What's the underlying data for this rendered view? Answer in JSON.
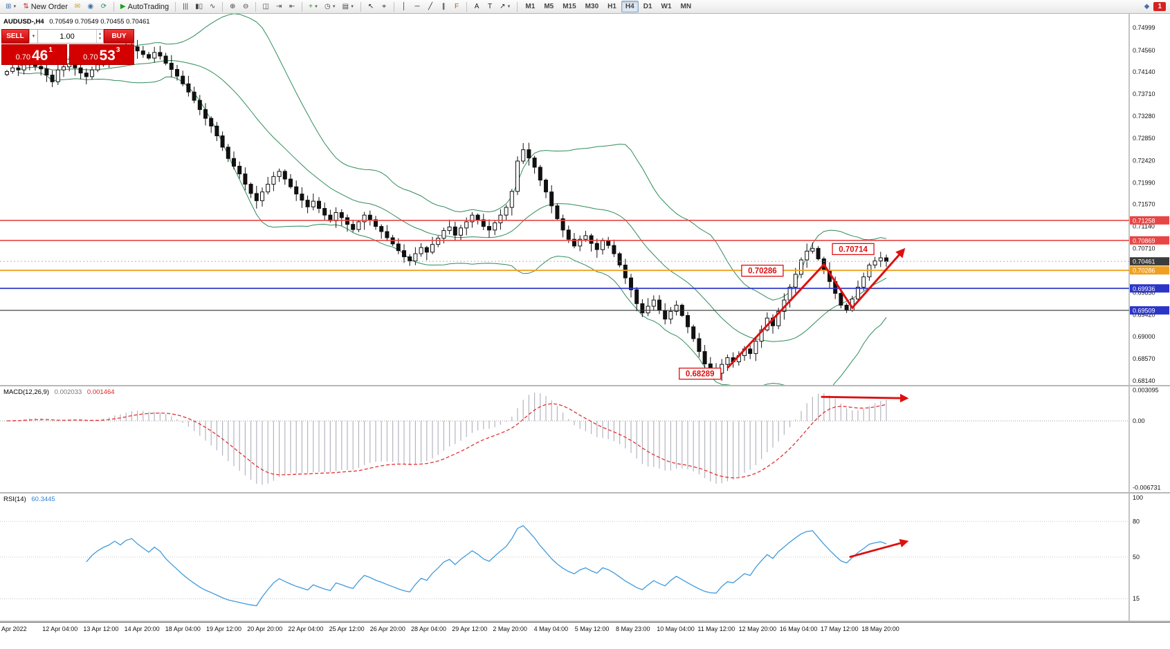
{
  "colors": {
    "arrow": "#dd1010",
    "bollinger": "#2e8b57",
    "candle": "#111111",
    "macd_hist": "#b4b4c0",
    "macd_signal": "#e23030",
    "rsi_line": "#3e9ade",
    "axis_current_bg": "#3c3c3c",
    "grid": "#b8b8b8"
  },
  "toolbar": {
    "active_timeframe": "H4",
    "items": [
      {
        "t": "icon",
        "name": "new-chart-icon",
        "glyph": "⊞",
        "color": "#3a6ea5",
        "caret": true
      },
      {
        "t": "icon",
        "name": "new-order-button",
        "glyph": "⇅",
        "color": "#c03030",
        "label": "New Order"
      },
      {
        "t": "icon",
        "name": "mailbox-icon",
        "glyph": "✉",
        "color": "#c8a020"
      },
      {
        "t": "icon",
        "name": "market-watch-icon",
        "glyph": "◉",
        "color": "#3a6ea5"
      },
      {
        "t": "icon",
        "name": "refresh-icon",
        "glyph": "⟳",
        "color": "#2e8b57"
      },
      {
        "t": "sep"
      },
      {
        "t": "icon",
        "name": "autotrading-button",
        "glyph": "▶",
        "color": "#18a018",
        "label": "AutoTrading"
      },
      {
        "t": "sep"
      },
      {
        "t": "icon",
        "name": "bar-chart-icon",
        "glyph": "|||",
        "color": "#444"
      },
      {
        "t": "icon",
        "name": "candlestick-chart-icon",
        "glyph": "▮▯",
        "color": "#444"
      },
      {
        "t": "icon",
        "name": "line-chart-icon",
        "glyph": "∿",
        "color": "#444"
      },
      {
        "t": "sep"
      },
      {
        "t": "icon",
        "name": "zoom-in-icon",
        "glyph": "⊕",
        "color": "#444"
      },
      {
        "t": "icon",
        "name": "zoom-out-icon",
        "glyph": "⊖",
        "color": "#444"
      },
      {
        "t": "sep"
      },
      {
        "t": "icon",
        "name": "tile-windows-icon",
        "glyph": "◫",
        "color": "#444"
      },
      {
        "t": "icon",
        "name": "auto-scroll-icon",
        "glyph": "⇥",
        "color": "#444"
      },
      {
        "t": "icon",
        "name": "chart-shift-icon",
        "glyph": "⇤",
        "color": "#444"
      },
      {
        "t": "sep"
      },
      {
        "t": "icon",
        "name": "indicators-icon",
        "glyph": "+",
        "color": "#18a018",
        "caret": true
      },
      {
        "t": "icon",
        "name": "periods-icon",
        "glyph": "◷",
        "color": "#444",
        "caret": true
      },
      {
        "t": "icon",
        "name": "templates-icon",
        "glyph": "▤",
        "color": "#444",
        "caret": true
      },
      {
        "t": "sep"
      },
      {
        "t": "icon",
        "name": "cursor-icon",
        "glyph": "↖",
        "color": "#222"
      },
      {
        "t": "icon",
        "name": "crosshair-icon",
        "glyph": "⌖",
        "color": "#222"
      },
      {
        "t": "sep"
      },
      {
        "t": "icon",
        "name": "vertical-line-icon",
        "glyph": "│",
        "color": "#222"
      },
      {
        "t": "icon",
        "name": "horizontal-line-icon",
        "glyph": "─",
        "color": "#222"
      },
      {
        "t": "icon",
        "name": "trendline-icon",
        "glyph": "╱",
        "color": "#222"
      },
      {
        "t": "icon",
        "name": "channel-icon",
        "glyph": "∥",
        "color": "#222"
      },
      {
        "t": "icon",
        "name": "fibonacci-icon",
        "glyph": "F",
        "color": "#a06a00"
      },
      {
        "t": "sep"
      },
      {
        "t": "icon",
        "name": "text-icon",
        "glyph": "A",
        "color": "#222"
      },
      {
        "t": "icon",
        "name": "text-label-icon",
        "glyph": "T",
        "color": "#222"
      },
      {
        "t": "icon",
        "name": "arrows-icon",
        "glyph": "↗",
        "color": "#222",
        "caret": true
      },
      {
        "t": "sep"
      },
      {
        "t": "tf",
        "label": "M1"
      },
      {
        "t": "tf",
        "label": "M5"
      },
      {
        "t": "tf",
        "label": "M15"
      },
      {
        "t": "tf",
        "label": "M30"
      },
      {
        "t": "tf",
        "label": "H1"
      },
      {
        "t": "tf",
        "label": "H4"
      },
      {
        "t": "tf",
        "label": "D1"
      },
      {
        "t": "tf",
        "label": "W1"
      },
      {
        "t": "tf",
        "label": "MN"
      },
      {
        "t": "spacer"
      },
      {
        "t": "icon",
        "name": "community-icon",
        "glyph": "◆",
        "color": "#4a6fa5"
      },
      {
        "t": "badge",
        "name": "notifications-badge",
        "label": "1"
      }
    ]
  },
  "chart": {
    "title": "AUDUSD-,H4",
    "ohlc": "0.70549 0.70549 0.70455 0.70461",
    "current_price": "0.70461",
    "one_click": {
      "sell_label": "SELL",
      "buy_label": "BUY",
      "volume": "1.00",
      "sell_small": "0.70",
      "sell_big": "46",
      "sell_sup": "1",
      "buy_small": "0.70",
      "buy_big": "53",
      "buy_sup": "3"
    },
    "y_axis_labels": [
      "0.74999",
      "0.74560",
      "0.74140",
      "0.73710",
      "0.73280",
      "0.72850",
      "0.72420",
      "0.71990",
      "0.71570",
      "0.71140",
      "0.70710",
      "0.70280",
      "0.69850",
      "0.69420",
      "0.69000",
      "0.68570",
      "0.68140"
    ],
    "levels": [
      {
        "label": "0.71258",
        "price": 0.71258,
        "color": "#e84545",
        "width": 1.6
      },
      {
        "label": "0.70869",
        "price": 0.70869,
        "color": "#e84545",
        "width": 1.6
      },
      {
        "label": "0.70286",
        "price": 0.70286,
        "color": "#efa020",
        "width": 1.8
      },
      {
        "label": "0.69936",
        "price": 0.69936,
        "color": "#2b35c8",
        "width": 1.8
      },
      {
        "label": "0.69509",
        "price": 0.69509,
        "color": "#2b35c8",
        "line_color": "#303030",
        "width": 1.2
      }
    ],
    "annotations": [
      {
        "text": "0.70714",
        "bar": 145.5,
        "price": 0.707
      },
      {
        "text": "0.70286",
        "bar": 129.5,
        "price": 0.7028
      },
      {
        "text": "0.68289",
        "bar": 118.5,
        "price": 0.6828
      }
    ],
    "arrow_path": [
      [
        127,
        0.6839
      ],
      [
        144,
        0.704
      ],
      [
        149,
        0.6956
      ],
      [
        158,
        0.7068
      ]
    ]
  },
  "macd": {
    "name": "MACD(12,26,9)",
    "main_value": "0.002033",
    "signal_value": "0.001464",
    "axis": [
      {
        "v": 0.003095,
        "t": "0.003095"
      },
      {
        "v": 0,
        "t": "0.00"
      },
      {
        "v": -0.006731,
        "t": "-0.006731"
      }
    ],
    "arrow": [
      [
        143.5,
        0.00242
      ],
      [
        158.5,
        0.00228
      ]
    ]
  },
  "rsi": {
    "name": "RSI(14)",
    "value": "60.3445",
    "axis_labels": [
      "100",
      "80",
      "50",
      "15"
    ],
    "levels": [
      80,
      50,
      15
    ],
    "arrow": [
      [
        148.5,
        50
      ],
      [
        158.5,
        63
      ]
    ]
  },
  "time_axis": [
    "Apr 2022",
    "12 Apr 04:00",
    "13 Apr 12:00",
    "14 Apr 20:00",
    "18 Apr 04:00",
    "19 Apr 12:00",
    "20 Apr 20:00",
    "22 Apr 04:00",
    "25 Apr 12:00",
    "26 Apr 20:00",
    "28 Apr 04:00",
    "29 Apr 12:00",
    "2 May 20:00",
    "4 May 04:00",
    "5 May 12:00",
    "8 May 23:00",
    "10 May 04:00",
    "11 May 12:00",
    "12 May 20:00",
    "16 May 04:00",
    "17 May 12:00",
    "18 May 20:00"
  ],
  "chart_data": {
    "type": "candlestick",
    "symbol": "AUDUSD-",
    "timeframe": "H4",
    "ylim": [
      0.6806,
      0.7527
    ],
    "current_bar": {
      "open": 0.70549,
      "high": 0.70549,
      "low": 0.70455,
      "close": 0.70461
    },
    "overlays": [
      "Bollinger Bands(20,2)"
    ],
    "indicators": [
      {
        "name": "MACD(12,26,9)",
        "last_main": 0.002033,
        "last_signal": 0.001464,
        "axis_max": 0.003095,
        "axis_min": -0.006731
      },
      {
        "name": "RSI(14)",
        "last": 60.3445
      }
    ],
    "key_levels": [
      0.71258,
      0.70869,
      0.70286,
      0.69936,
      0.69509
    ],
    "swing_labels": [
      0.70714,
      0.70286,
      0.68289
    ],
    "closes": [
      0.7415,
      0.7422,
      0.7418,
      0.7428,
      0.7432,
      0.7425,
      0.742,
      0.7408,
      0.7395,
      0.7418,
      0.7424,
      0.743,
      0.7422,
      0.7412,
      0.7405,
      0.7418,
      0.7428,
      0.7436,
      0.7442,
      0.7452,
      0.7446,
      0.7458,
      0.7463,
      0.7455,
      0.7448,
      0.7441,
      0.7452,
      0.7445,
      0.7431,
      0.7419,
      0.7406,
      0.7391,
      0.7375,
      0.7359,
      0.7341,
      0.7324,
      0.7309,
      0.729,
      0.7268,
      0.7246,
      0.7231,
      0.7216,
      0.7196,
      0.7178,
      0.7164,
      0.7181,
      0.7196,
      0.7211,
      0.7221,
      0.7206,
      0.7191,
      0.7177,
      0.7165,
      0.7152,
      0.7163,
      0.7149,
      0.7136,
      0.7125,
      0.7141,
      0.7131,
      0.7118,
      0.7108,
      0.7123,
      0.7136,
      0.7127,
      0.7114,
      0.7104,
      0.7092,
      0.708,
      0.7067,
      0.7055,
      0.7047,
      0.7061,
      0.7073,
      0.7064,
      0.7079,
      0.7091,
      0.7106,
      0.7113,
      0.7097,
      0.7111,
      0.7123,
      0.7136,
      0.7127,
      0.7114,
      0.7107,
      0.7121,
      0.7136,
      0.7151,
      0.7182,
      0.7241,
      0.7263,
      0.7247,
      0.7229,
      0.7204,
      0.7181,
      0.7154,
      0.7129,
      0.7107,
      0.7089,
      0.7076,
      0.7089,
      0.7096,
      0.7081,
      0.7069,
      0.7086,
      0.7077,
      0.7061,
      0.7039,
      0.7014,
      0.6991,
      0.6964,
      0.6946,
      0.6959,
      0.6971,
      0.6951,
      0.6934,
      0.6949,
      0.6961,
      0.6941,
      0.6919,
      0.6896,
      0.6871,
      0.6847,
      0.6833,
      0.68289,
      0.6846,
      0.6859,
      0.6851,
      0.6863,
      0.6876,
      0.6867,
      0.6891,
      0.6913,
      0.6936,
      0.6921,
      0.6949,
      0.6971,
      0.6996,
      0.7021,
      0.7049,
      0.7066,
      0.70714,
      0.7051,
      0.7029,
      0.7007,
      0.6984,
      0.6961,
      0.6951,
      0.6973,
      0.6996,
      0.7016,
      0.7039,
      0.7047,
      0.7053,
      0.70461
    ]
  }
}
